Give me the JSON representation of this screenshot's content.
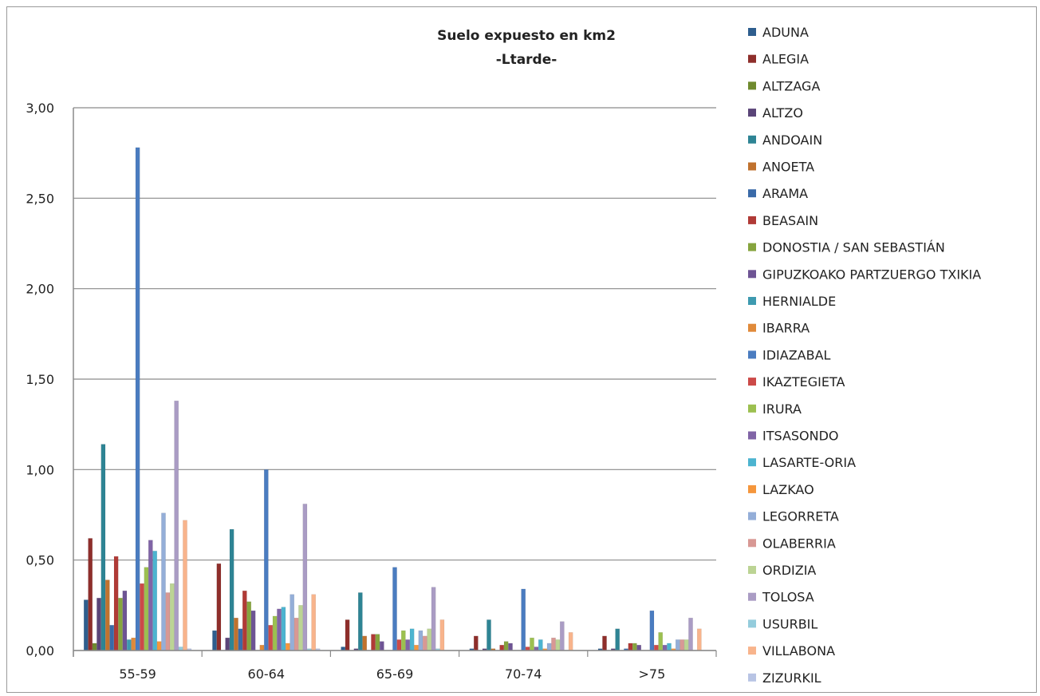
{
  "chart_data": {
    "type": "bar",
    "title": "Suelo expuesto en km2",
    "subtitle": "-Ltarde-",
    "xlabel": "",
    "ylabel": "",
    "ylim": [
      0,
      3
    ],
    "y_ticks": [
      "0,00",
      "0,50",
      "1,00",
      "1,50",
      "2,00",
      "2,50",
      "3,00"
    ],
    "categories": [
      "55-59",
      "60-64",
      "65-69",
      "70-74",
      ">75"
    ],
    "grid": true,
    "legend_position": "right",
    "series": [
      {
        "name": "ADUNA",
        "color": "#2e5e8e",
        "values": [
          0.28,
          0.11,
          0.02,
          0.01,
          0.01
        ]
      },
      {
        "name": "ALEGIA",
        "color": "#8e2e2b",
        "values": [
          0.62,
          0.48,
          0.17,
          0.08,
          0.08
        ]
      },
      {
        "name": "ALTZAGA",
        "color": "#6f8a2e",
        "values": [
          0.04,
          0.0,
          0.0,
          0.0,
          0.0
        ]
      },
      {
        "name": "ALTZO",
        "color": "#5a4478",
        "values": [
          0.29,
          0.07,
          0.01,
          0.01,
          0.01
        ]
      },
      {
        "name": "ANDOAIN",
        "color": "#2e8494",
        "values": [
          1.14,
          0.67,
          0.32,
          0.17,
          0.12
        ]
      },
      {
        "name": "ANOETA",
        "color": "#c0722e",
        "values": [
          0.39,
          0.18,
          0.08,
          0.01,
          0.0
        ]
      },
      {
        "name": "ARAMA",
        "color": "#3a6aa8",
        "values": [
          0.14,
          0.12,
          0.0,
          0.0,
          0.01
        ]
      },
      {
        "name": "BEASAIN",
        "color": "#b03a36",
        "values": [
          0.52,
          0.33,
          0.09,
          0.03,
          0.04
        ]
      },
      {
        "name": "DONOSTIA / SAN SEBASTIÁN",
        "color": "#86a43e",
        "values": [
          0.29,
          0.27,
          0.09,
          0.05,
          0.04
        ]
      },
      {
        "name": "GIPUZKOAKO PARTZUERGO TXIKIA",
        "color": "#6e5494",
        "values": [
          0.33,
          0.22,
          0.05,
          0.04,
          0.03
        ]
      },
      {
        "name": "HERNIALDE",
        "color": "#3e9ab0",
        "values": [
          0.06,
          0.0,
          0.0,
          0.0,
          0.0
        ]
      },
      {
        "name": "IBARRA",
        "color": "#e08a3a",
        "values": [
          0.07,
          0.03,
          0.0,
          0.0,
          0.0
        ]
      },
      {
        "name": "IDIAZABAL",
        "color": "#4a7cc0",
        "values": [
          2.78,
          1.0,
          0.46,
          0.34,
          0.22
        ]
      },
      {
        "name": "IKAZTEGIETA",
        "color": "#cc4a48",
        "values": [
          0.37,
          0.14,
          0.06,
          0.02,
          0.03
        ]
      },
      {
        "name": "IRURA",
        "color": "#9cc050",
        "values": [
          0.46,
          0.19,
          0.11,
          0.07,
          0.1
        ]
      },
      {
        "name": "ITSASONDO",
        "color": "#8064a6",
        "values": [
          0.61,
          0.23,
          0.06,
          0.02,
          0.03
        ]
      },
      {
        "name": "LASARTE-ORIA",
        "color": "#4cb4d0",
        "values": [
          0.55,
          0.24,
          0.12,
          0.06,
          0.04
        ]
      },
      {
        "name": "LAZKAO",
        "color": "#f5963c",
        "values": [
          0.05,
          0.04,
          0.03,
          0.01,
          0.01
        ]
      },
      {
        "name": "LEGORRETA",
        "color": "#94aed8",
        "values": [
          0.76,
          0.31,
          0.11,
          0.04,
          0.06
        ]
      },
      {
        "name": "OLABERRIA",
        "color": "#d89894",
        "values": [
          0.32,
          0.18,
          0.08,
          0.07,
          0.06
        ]
      },
      {
        "name": "ORDIZIA",
        "color": "#bcd494",
        "values": [
          0.37,
          0.25,
          0.12,
          0.06,
          0.06
        ]
      },
      {
        "name": "TOLOSA",
        "color": "#aa9cc4",
        "values": [
          1.38,
          0.81,
          0.35,
          0.16,
          0.18
        ]
      },
      {
        "name": "USURBIL",
        "color": "#94ccdc",
        "values": [
          0.02,
          0.01,
          0.01,
          0.0,
          0.0
        ]
      },
      {
        "name": "VILLABONA",
        "color": "#f8b48c",
        "values": [
          0.72,
          0.31,
          0.17,
          0.1,
          0.12
        ]
      },
      {
        "name": "ZIZURKIL",
        "color": "#b8c4e4",
        "values": [
          0.01,
          0.01,
          0.0,
          0.0,
          0.0
        ]
      }
    ]
  }
}
